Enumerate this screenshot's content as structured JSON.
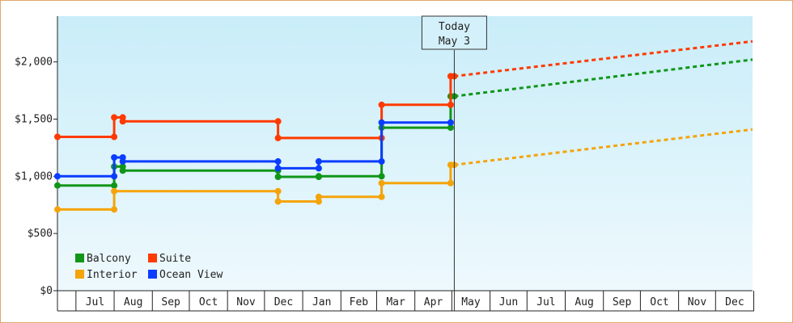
{
  "chart_data": {
    "type": "line",
    "title": "",
    "xlabel": "",
    "ylabel": "",
    "x_axis": {
      "start": "2019-06-16",
      "end": "2020-12-31",
      "month_ticks": [
        "Jul",
        "Aug",
        "Sep",
        "Oct",
        "Nov",
        "Dec",
        "Jan",
        "Feb",
        "Mar",
        "Apr",
        "May",
        "Jun",
        "Jul",
        "Aug",
        "Sep",
        "Oct",
        "Nov",
        "Dec"
      ]
    },
    "y_axis": {
      "range": [
        0,
        2400
      ],
      "ticks": [
        0,
        500,
        1000,
        1500,
        2000
      ],
      "tick_labels": [
        "$0",
        "$500",
        "$1,000",
        "$1,500",
        "$2,000"
      ]
    },
    "grid": false,
    "today_marker": {
      "date": "2020-05-03",
      "line1": "Today",
      "line2": "May 3"
    },
    "legend_placement": "bottom-left",
    "series": [
      {
        "name": "Balcony",
        "color": "#109618",
        "history": [
          [
            "2019-06-16",
            920
          ],
          [
            "2019-08-01",
            920
          ],
          [
            "2019-08-01",
            1085
          ],
          [
            "2019-08-08",
            1085
          ],
          [
            "2019-08-08",
            1050
          ],
          [
            "2019-12-12",
            1050
          ],
          [
            "2019-12-12",
            995
          ],
          [
            "2020-01-14",
            995
          ],
          [
            "2020-01-14",
            1000
          ],
          [
            "2020-03-05",
            1000
          ],
          [
            "2020-03-05",
            1425
          ],
          [
            "2020-04-30",
            1425
          ],
          [
            "2020-04-30",
            1700
          ],
          [
            "2020-05-03",
            1700
          ]
        ],
        "forecast": [
          [
            "2020-05-03",
            1700
          ],
          [
            "2020-12-31",
            2020
          ]
        ]
      },
      {
        "name": "Suite",
        "color": "#ff3a00",
        "history": [
          [
            "2019-06-16",
            1345
          ],
          [
            "2019-08-01",
            1345
          ],
          [
            "2019-08-01",
            1515
          ],
          [
            "2019-08-08",
            1515
          ],
          [
            "2019-08-08",
            1480
          ],
          [
            "2019-12-12",
            1480
          ],
          [
            "2019-12-12",
            1335
          ],
          [
            "2020-03-05",
            1335
          ],
          [
            "2020-03-05",
            1625
          ],
          [
            "2020-04-30",
            1625
          ],
          [
            "2020-04-30",
            1875
          ],
          [
            "2020-05-03",
            1875
          ]
        ],
        "forecast": [
          [
            "2020-05-03",
            1875
          ],
          [
            "2020-12-31",
            2180
          ]
        ]
      },
      {
        "name": "Interior",
        "color": "#f4a40a",
        "history": [
          [
            "2019-06-16",
            710
          ],
          [
            "2019-08-01",
            710
          ],
          [
            "2019-08-01",
            870
          ],
          [
            "2019-12-12",
            870
          ],
          [
            "2019-12-12",
            780
          ],
          [
            "2020-01-14",
            780
          ],
          [
            "2020-01-14",
            820
          ],
          [
            "2020-03-05",
            820
          ],
          [
            "2020-03-05",
            940
          ],
          [
            "2020-04-30",
            940
          ],
          [
            "2020-04-30",
            1100
          ],
          [
            "2020-05-03",
            1100
          ]
        ],
        "forecast": [
          [
            "2020-05-03",
            1100
          ],
          [
            "2020-12-31",
            1410
          ]
        ]
      },
      {
        "name": "Ocean View",
        "color": "#0b3dff",
        "history": [
          [
            "2019-06-16",
            1000
          ],
          [
            "2019-08-01",
            1000
          ],
          [
            "2019-08-01",
            1165
          ],
          [
            "2019-08-08",
            1165
          ],
          [
            "2019-08-08",
            1130
          ],
          [
            "2019-12-12",
            1130
          ],
          [
            "2019-12-12",
            1070
          ],
          [
            "2020-01-14",
            1070
          ],
          [
            "2020-01-14",
            1130
          ],
          [
            "2020-03-05",
            1130
          ],
          [
            "2020-03-05",
            1470
          ],
          [
            "2020-04-30",
            1470
          ]
        ],
        "forecast": []
      }
    ]
  }
}
